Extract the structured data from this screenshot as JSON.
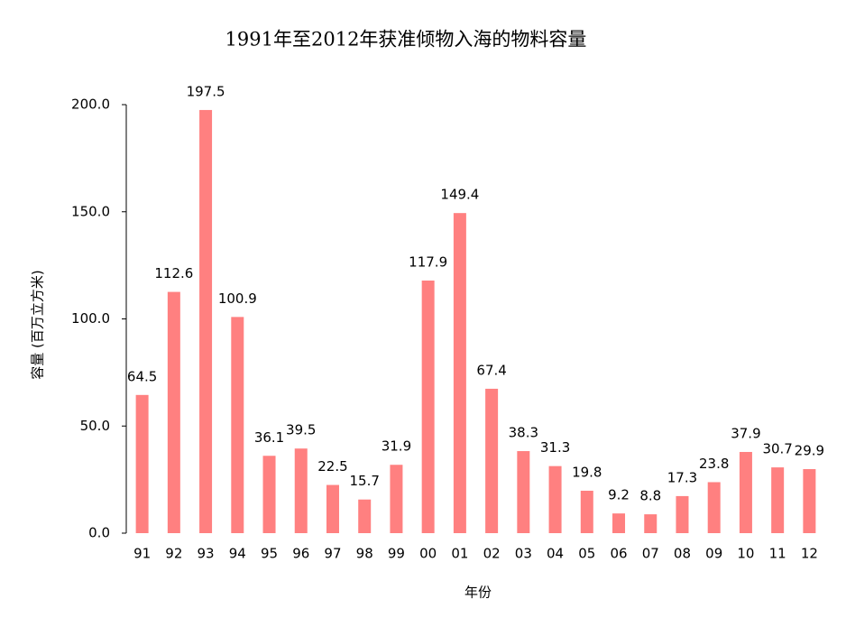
{
  "chart_data": {
    "type": "bar",
    "title": "1991年至2012年获准倾物入海的物料容量",
    "x_label": "年份",
    "y_label": "容量 (百万立方米)",
    "categories": [
      "91",
      "92",
      "93",
      "94",
      "95",
      "96",
      "97",
      "98",
      "99",
      "00",
      "01",
      "02",
      "03",
      "04",
      "05",
      "06",
      "07",
      "08",
      "09",
      "10",
      "11",
      "12"
    ],
    "values": [
      64.5,
      112.6,
      197.5,
      100.9,
      36.1,
      39.5,
      22.5,
      15.7,
      31.9,
      117.9,
      149.4,
      67.4,
      38.3,
      31.3,
      19.8,
      9.2,
      8.8,
      17.3,
      23.8,
      37.9,
      30.7,
      29.9
    ],
    "color": "#ff8080",
    "ylim": [
      0,
      200
    ],
    "yticks": [
      {
        "value": 0,
        "label": "0.0"
      },
      {
        "value": 50,
        "label": "50.0"
      },
      {
        "value": 100,
        "label": "100.0"
      },
      {
        "value": 150,
        "label": "150.0"
      },
      {
        "value": 200,
        "label": "200.0"
      }
    ],
    "grid": false
  }
}
